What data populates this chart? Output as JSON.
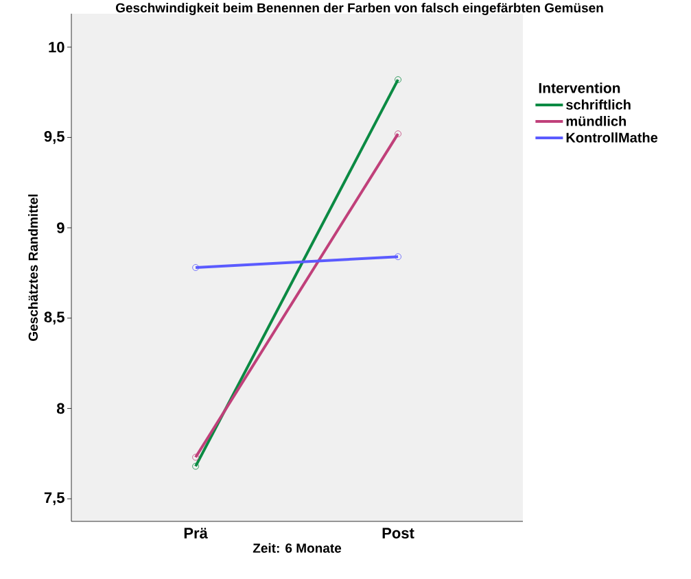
{
  "chart_data": {
    "type": "line",
    "title": "Geschwindigkeit beim Benennen der Farben von falsch eingefärbten Gemüsen",
    "xlabel": "Zeit: 6 Monate",
    "ylabel": "Geschätztes Randmittel",
    "legend_title": "Intervention",
    "categories": [
      "Prä",
      "Post"
    ],
    "series": [
      {
        "name": "schriftlich",
        "color": "#0b8a43",
        "values": [
          7.68,
          9.82
        ]
      },
      {
        "name": "mündlich",
        "color": "#c0407a",
        "values": [
          7.73,
          9.52
        ]
      },
      {
        "name": "KontrollMathe",
        "color": "#5b5bff",
        "values": [
          8.78,
          8.84
        ]
      }
    ],
    "ylim": [
      7.375,
      10.185
    ],
    "yticks": [
      {
        "value": 7.5,
        "label": "7,5"
      },
      {
        "value": 8,
        "label": "8"
      },
      {
        "value": 8.5,
        "label": "8,5"
      },
      {
        "value": 9,
        "label": "9"
      },
      {
        "value": 9.5,
        "label": "9,5"
      },
      {
        "value": 10,
        "label": "10"
      }
    ],
    "legend": "right",
    "marker": "circle",
    "line_style": "solid",
    "grid": false
  }
}
